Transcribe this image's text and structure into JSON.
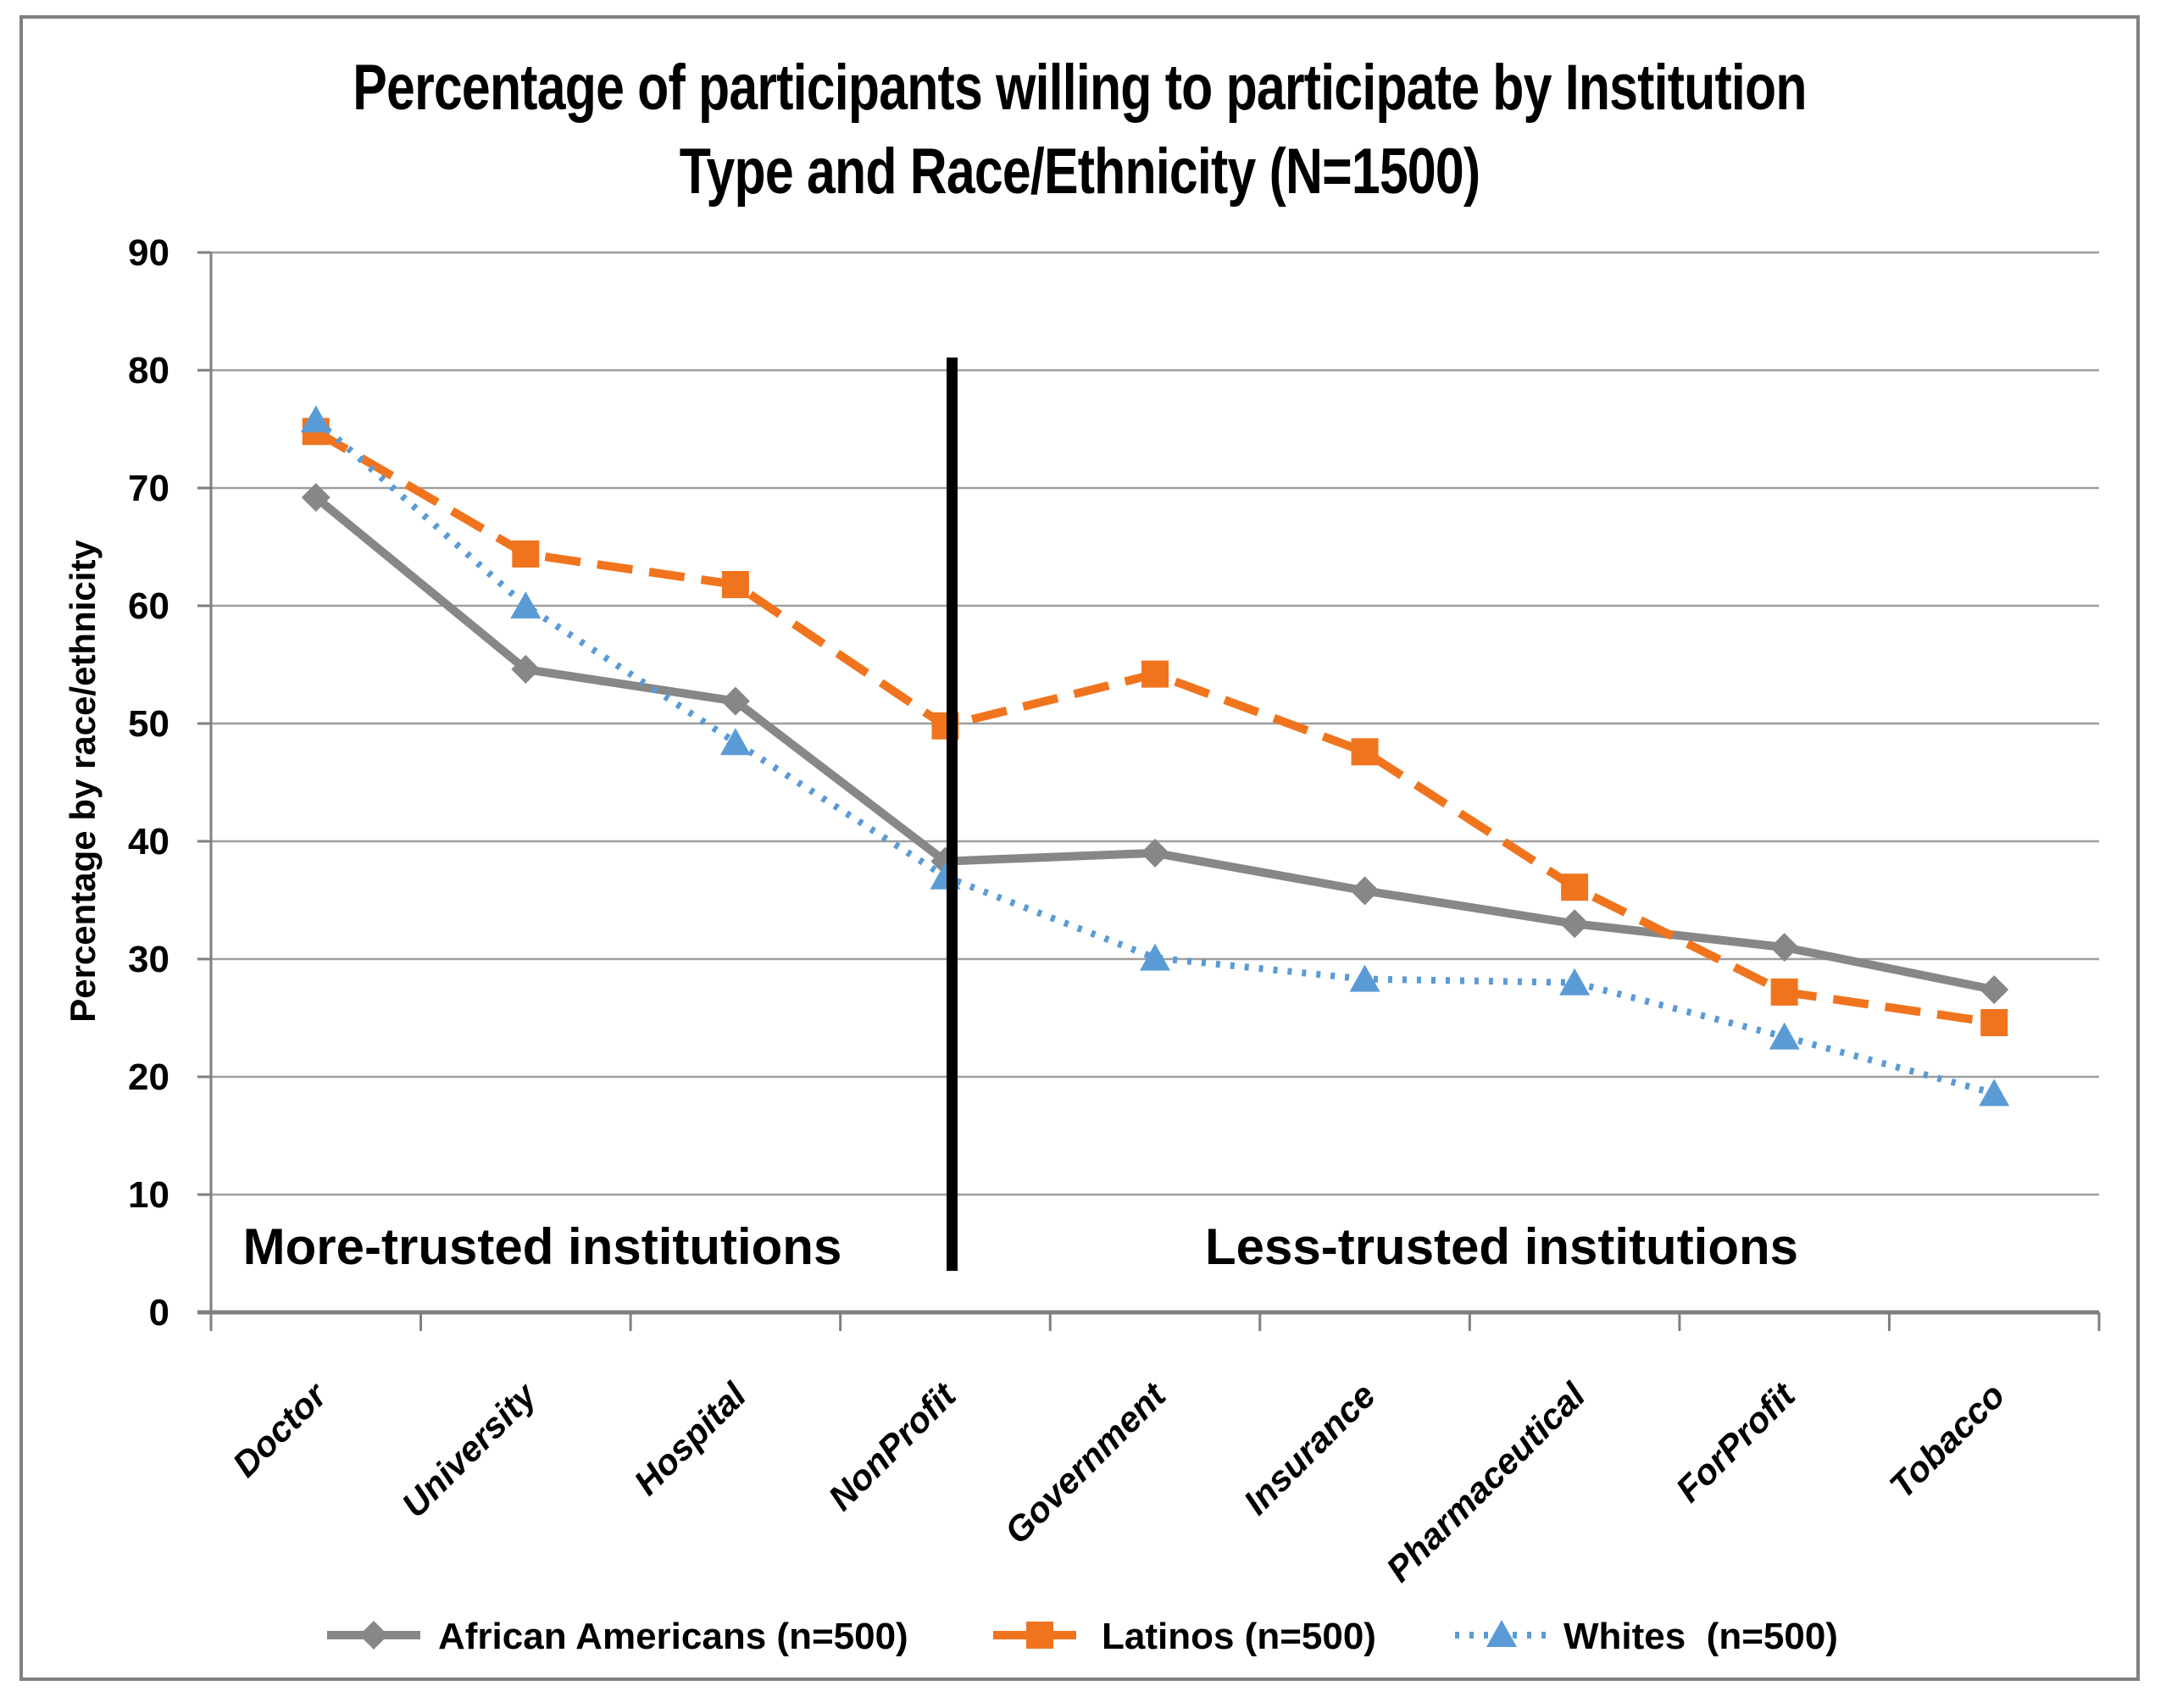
{
  "title": {
    "line1": "Percentage of participants willing to participate by Institution",
    "line2": "Type and Race/Ethnicity (N=1500)"
  },
  "y_axis": {
    "title": "Percentage by race/ethnicity",
    "ticks": [
      0,
      10,
      20,
      30,
      40,
      50,
      60,
      70,
      80,
      90
    ]
  },
  "annotations": {
    "left_group": "More-trusted institutions",
    "right_group": "Less-trusted institutions"
  },
  "colors": {
    "african_americans": "#878787",
    "latinos": "#F0741E",
    "whites": "#5B9BD5",
    "gridline": "#9E9E9E",
    "axis": "#7F7F7F",
    "divider": "#000000",
    "frame_border": "#808080",
    "text": "#000000"
  },
  "chart_data": {
    "type": "line",
    "title": "Percentage of participants willing to participate by Institution Type and Race/Ethnicity (N=1500)",
    "categories": [
      "Doctor",
      "University",
      "Hospital",
      "NonProfit",
      "Government",
      "Insurance",
      "Pharmaceutical",
      "ForProfit",
      "Tobacco"
    ],
    "series": [
      {
        "name": "African Americans (n=500)",
        "color": "#878787",
        "marker": "diamond",
        "line_style": "solid",
        "values": [
          69.2,
          54.6,
          51.9,
          38.3,
          39.0,
          35.8,
          33.0,
          31.0,
          27.4
        ]
      },
      {
        "name": "Latinos (n=500)",
        "color": "#F0741E",
        "marker": "square",
        "line_style": "dashed",
        "values": [
          74.8,
          64.4,
          61.8,
          49.8,
          54.2,
          47.6,
          36.1,
          27.2,
          24.6
        ]
      },
      {
        "name": "Whites  (n=500)",
        "color": "#5B9BD5",
        "marker": "triangle",
        "line_style": "dotted",
        "values": [
          75.8,
          60.0,
          48.4,
          37.0,
          30.1,
          28.3,
          28.0,
          23.4,
          18.6
        ]
      }
    ],
    "xlabel": "",
    "ylabel": "Percentage by race/ethnicity",
    "ylim": [
      0,
      90
    ],
    "grid": true,
    "legend_position": "bottom",
    "divider_between": [
      "NonProfit",
      "Government"
    ],
    "group_labels": [
      "More-trusted institutions",
      "Less-trusted institutions"
    ]
  }
}
